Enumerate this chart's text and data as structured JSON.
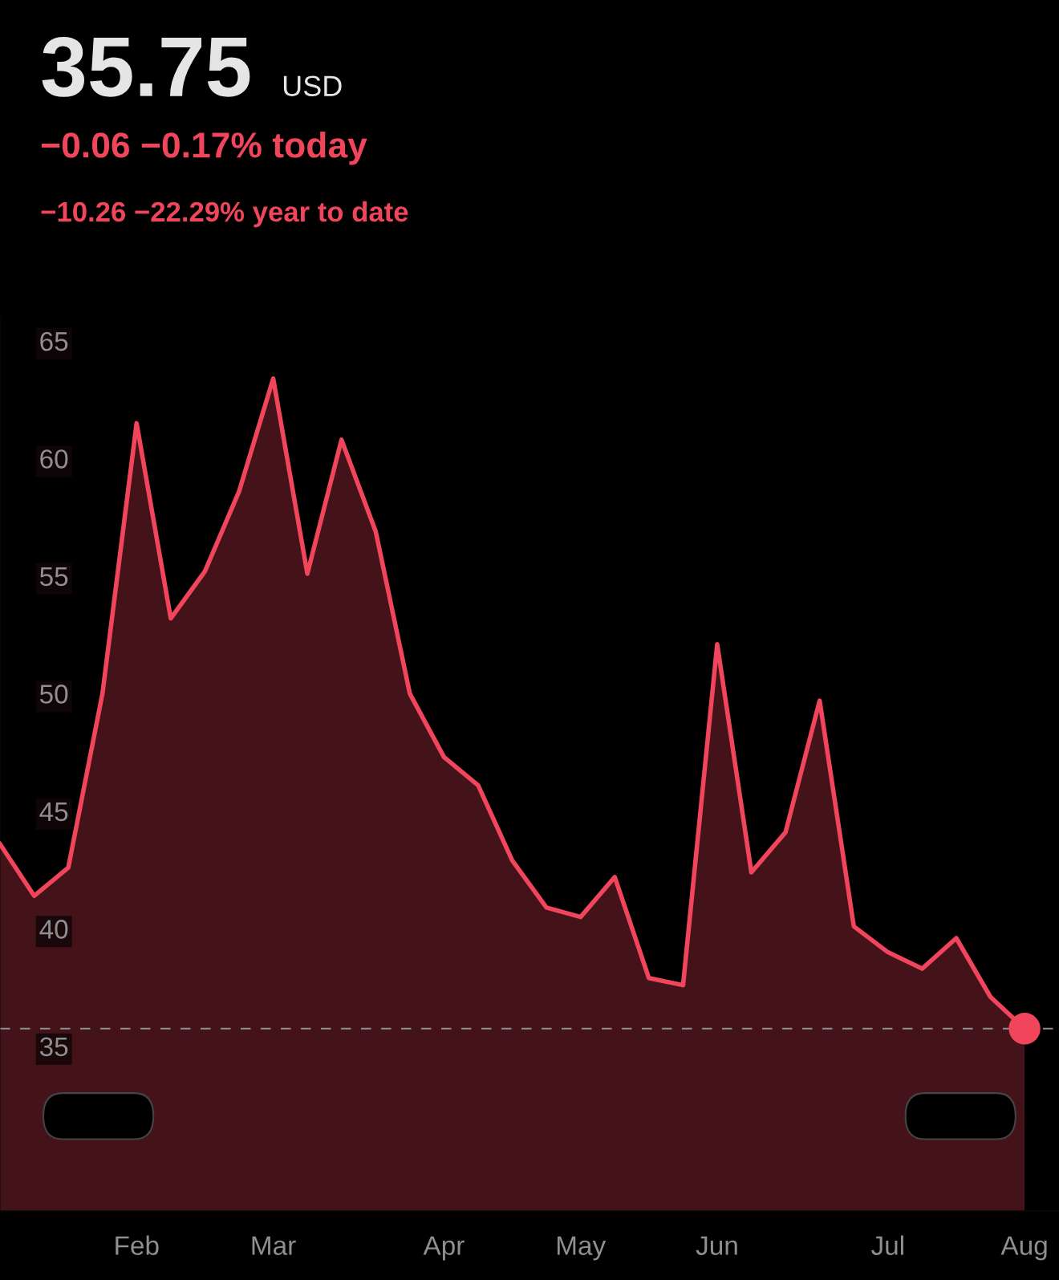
{
  "chart_data": {
    "type": "area",
    "title": "35.75",
    "annotations": [
      "USD",
      "−0.06 −0.17% today",
      "−10.26 −22.29% year to date"
    ],
    "categories": [
      null,
      null,
      null,
      null,
      "Feb",
      null,
      null,
      null,
      "Mar",
      null,
      null,
      null,
      null,
      "Apr",
      null,
      null,
      null,
      "May",
      null,
      null,
      null,
      "Jun",
      null,
      null,
      null,
      null,
      "Jul",
      null,
      null,
      null,
      "Aug"
    ],
    "series": [
      {
        "color": "#f0455a",
        "values": [
          43.6,
          41.4,
          42.6,
          50.0,
          61.5,
          53.2,
          55.2,
          58.6,
          63.4,
          55.1,
          60.8,
          56.9,
          50.0,
          47.3,
          46.1,
          42.9,
          40.9,
          40.5,
          42.2,
          37.9,
          37.6,
          52.1,
          42.4,
          44.1,
          49.7,
          40.1,
          39.0,
          38.3,
          39.6,
          37.1,
          35.75
        ]
      },
      {
        "type": "scatter",
        "color": "#f0455a",
        "x": [
          "Aug"
        ],
        "values": [
          35.75
        ],
        "marker": "circle"
      }
    ],
    "ylim": [
      28,
      66
    ],
    "yticks": [
      35,
      40,
      45,
      50,
      55,
      60,
      65
    ],
    "ref_lines": [
      {
        "axis": "y",
        "value": 35.75,
        "color": "#8e8e93",
        "line_style": "dashed"
      }
    ],
    "grid": false,
    "legend": false,
    "marker": "none",
    "line_style": "solid"
  }
}
